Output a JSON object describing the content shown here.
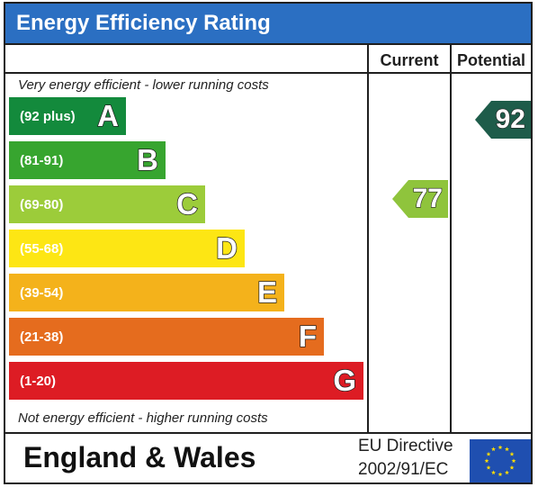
{
  "title": "Energy Efficiency Rating",
  "columns": {
    "current": "Current",
    "potential": "Potential"
  },
  "notes": {
    "top": "Very energy efficient - lower running costs",
    "bottom": "Not energy efficient - higher running costs"
  },
  "bands": [
    {
      "letter": "A",
      "range": "(92 plus)",
      "color": "#138a3c"
    },
    {
      "letter": "B",
      "range": "(81-91)",
      "color": "#37a52f"
    },
    {
      "letter": "C",
      "range": "(69-80)",
      "color": "#9ccc3a"
    },
    {
      "letter": "D",
      "range": "(55-68)",
      "color": "#fde614"
    },
    {
      "letter": "E",
      "range": "(39-54)",
      "color": "#f4b21b"
    },
    {
      "letter": "F",
      "range": "(21-38)",
      "color": "#e56c1e"
    },
    {
      "letter": "G",
      "range": "(1-20)",
      "color": "#dd1c24"
    }
  ],
  "ratings": {
    "current": {
      "value": "77",
      "band": "C",
      "color": "#8fc43c"
    },
    "potential": {
      "value": "92",
      "band": "A",
      "color": "#1e5c4a"
    }
  },
  "footer": {
    "country": "England & Wales",
    "directive_line1": "EU Directive",
    "directive_line2": "2002/91/EC",
    "flag_icon": "eu-flag-icon",
    "flag_color": "#1f4fb0",
    "star_color": "#ffdd00"
  }
}
